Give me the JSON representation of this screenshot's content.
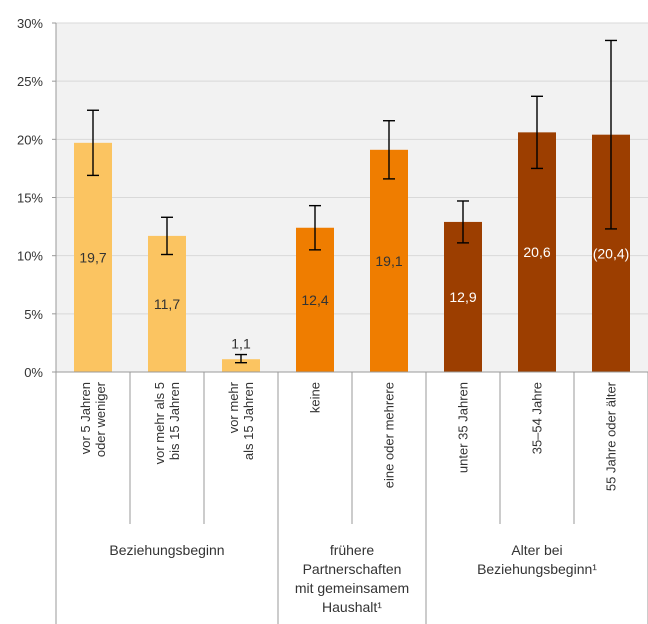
{
  "chart_data": {
    "type": "bar",
    "title": "",
    "xlabel": "",
    "ylabel": "",
    "ylim": [
      0,
      30
    ],
    "y_ticks": [
      "0%",
      "5%",
      "10%",
      "15%",
      "20%",
      "25%",
      "30%"
    ],
    "y_tick_values": [
      0,
      5,
      10,
      15,
      20,
      25,
      30
    ],
    "grid": true,
    "legend": "none",
    "colors": {
      "group1": "#FBC461",
      "group2": "#EF7D00",
      "group3": "#9C3E00",
      "grid": "#d9d9d9",
      "axis": "#999999",
      "plot_bg": "#f2f2f2"
    },
    "categories": [
      [
        "vor 5 Jahren",
        "oder weniger"
      ],
      [
        "vor mehr als 5",
        "bis 15 Jahren"
      ],
      [
        "vor mehr",
        "als 15 Jahren"
      ],
      [
        "keine"
      ],
      [
        "eine oder mehrere"
      ],
      [
        "unter 35 Jahren"
      ],
      [
        "35–54 Jahre"
      ],
      [
        "55 Jahre oder älter"
      ]
    ],
    "values": [
      19.7,
      11.7,
      1.1,
      12.4,
      19.1,
      12.9,
      20.6,
      20.4
    ],
    "value_labels": [
      "19,7",
      "11,7",
      "1,1",
      "12,4",
      "19,1",
      "12,9",
      "20,6",
      "(20,4)"
    ],
    "error_low": [
      16.9,
      10.1,
      0.8,
      10.5,
      16.6,
      11.1,
      17.5,
      12.3
    ],
    "error_high": [
      22.5,
      13.3,
      1.5,
      14.3,
      21.6,
      14.7,
      23.7,
      28.5
    ],
    "bar_group": [
      0,
      0,
      0,
      1,
      1,
      2,
      2,
      2
    ],
    "groups": [
      {
        "lines": [
          "Beziehungsbeginn"
        ]
      },
      {
        "lines": [
          "frühere",
          "Partnerschaften",
          "mit gemeinsamem",
          "Haushalt¹"
        ]
      },
      {
        "lines": [
          "Alter bei",
          "Beziehungsbeginn¹"
        ]
      }
    ]
  }
}
